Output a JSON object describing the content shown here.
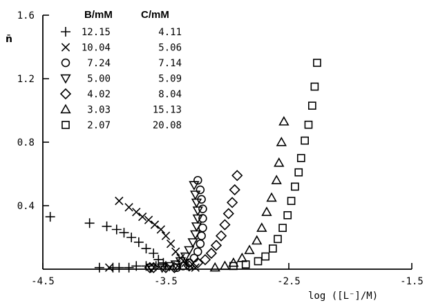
{
  "chart_data": {
    "type": "scatter",
    "ylabel": "n̄",
    "xlabel": "log ([L⁻]/M)",
    "xlim": [
      -4.5,
      -1.5
    ],
    "ylim": [
      0,
      1.6
    ],
    "xticks": [
      -4.5,
      -3.5,
      -2.5,
      -1.5
    ],
    "xtick_labels": [
      "-4.5",
      "-3.5",
      "-2.5",
      "-1.5"
    ],
    "yticks": [
      0.4,
      0.8,
      1.2,
      1.6
    ],
    "ytick_labels": [
      "0.4",
      "0.8",
      "1.2",
      "1.6"
    ],
    "legend": {
      "col_b": "B/mM",
      "col_c": "C/mM",
      "placement": "top-left"
    },
    "series": [
      {
        "marker": "plus",
        "b": "12.15",
        "c": "4.11",
        "points": [
          [
            -4.44,
            0.33
          ],
          [
            -4.12,
            0.29
          ],
          [
            -3.98,
            0.27
          ],
          [
            -3.9,
            0.25
          ],
          [
            -3.84,
            0.23
          ],
          [
            -3.78,
            0.2
          ],
          [
            -3.72,
            0.17
          ],
          [
            -3.66,
            0.13
          ],
          [
            -3.6,
            0.1
          ],
          [
            -3.56,
            0.06
          ],
          [
            -3.52,
            0.04
          ],
          [
            -3.5,
            0.02
          ],
          [
            -3.58,
            0.02
          ],
          [
            -3.66,
            0.02
          ],
          [
            -3.74,
            0.02
          ],
          [
            -3.8,
            0.01
          ],
          [
            -3.88,
            0.01
          ],
          [
            -3.93,
            0.01
          ],
          [
            -4.04,
            0.01
          ]
        ]
      },
      {
        "marker": "cross",
        "b": "10.04",
        "c": "5.06",
        "points": [
          [
            -3.96,
            0.01
          ],
          [
            -3.88,
            0.43
          ],
          [
            -3.8,
            0.39
          ],
          [
            -3.74,
            0.36
          ],
          [
            -3.69,
            0.33
          ],
          [
            -3.64,
            0.31
          ],
          [
            -3.59,
            0.28
          ],
          [
            -3.54,
            0.25
          ],
          [
            -3.5,
            0.21
          ],
          [
            -3.46,
            0.16
          ],
          [
            -3.42,
            0.11
          ],
          [
            -3.38,
            0.07
          ],
          [
            -3.34,
            0.04
          ],
          [
            -3.3,
            0.02
          ],
          [
            -3.26,
            0.01
          ]
        ]
      },
      {
        "marker": "circle",
        "b": "7.24",
        "c": "7.14",
        "points": [
          [
            -3.24,
            0.56
          ],
          [
            -3.22,
            0.5
          ],
          [
            -3.21,
            0.44
          ],
          [
            -3.2,
            0.38
          ],
          [
            -3.2,
            0.32
          ],
          [
            -3.2,
            0.26
          ],
          [
            -3.21,
            0.21
          ],
          [
            -3.22,
            0.16
          ],
          [
            -3.24,
            0.11
          ],
          [
            -3.27,
            0.07
          ],
          [
            -3.31,
            0.04
          ],
          [
            -3.36,
            0.02
          ],
          [
            -3.41,
            0.01
          ]
        ]
      },
      {
        "marker": "triangle-down",
        "b": "5.00",
        "c": "5.09",
        "points": [
          [
            -3.27,
            0.53
          ],
          [
            -3.26,
            0.47
          ],
          [
            -3.25,
            0.42
          ],
          [
            -3.24,
            0.37
          ],
          [
            -3.24,
            0.32
          ],
          [
            -3.25,
            0.27
          ],
          [
            -3.26,
            0.22
          ],
          [
            -3.28,
            0.17
          ],
          [
            -3.31,
            0.12
          ],
          [
            -3.34,
            0.08
          ],
          [
            -3.38,
            0.05
          ],
          [
            -3.42,
            0.03
          ],
          [
            -3.47,
            0.02
          ],
          [
            -3.53,
            0.01
          ],
          [
            -3.62,
            0.01
          ]
        ]
      },
      {
        "marker": "diamond",
        "b": "4.02",
        "c": "8.04",
        "points": [
          [
            -2.92,
            0.59
          ],
          [
            -2.94,
            0.5
          ],
          [
            -2.96,
            0.42
          ],
          [
            -2.99,
            0.35
          ],
          [
            -3.02,
            0.28
          ],
          [
            -3.05,
            0.21
          ],
          [
            -3.09,
            0.15
          ],
          [
            -3.13,
            0.1
          ],
          [
            -3.18,
            0.06
          ],
          [
            -3.24,
            0.04
          ],
          [
            -3.31,
            0.02
          ],
          [
            -3.43,
            0.01
          ],
          [
            -3.5,
            0.01
          ],
          [
            -3.6,
            0.01
          ],
          [
            -3.63,
            0.01
          ]
        ]
      },
      {
        "marker": "triangle-up",
        "b": "3.03",
        "c": "15.13",
        "points": [
          [
            -2.54,
            0.93
          ],
          [
            -2.56,
            0.8
          ],
          [
            -2.58,
            0.67
          ],
          [
            -2.6,
            0.56
          ],
          [
            -2.64,
            0.45
          ],
          [
            -2.68,
            0.36
          ],
          [
            -2.72,
            0.26
          ],
          [
            -2.76,
            0.18
          ],
          [
            -2.82,
            0.12
          ],
          [
            -2.88,
            0.07
          ],
          [
            -2.95,
            0.04
          ],
          [
            -3.02,
            0.02
          ],
          [
            -3.1,
            0.01
          ]
        ]
      },
      {
        "marker": "square",
        "b": "2.07",
        "c": "20.08",
        "points": [
          [
            -2.27,
            1.3
          ],
          [
            -2.29,
            1.15
          ],
          [
            -2.31,
            1.03
          ],
          [
            -2.34,
            0.91
          ],
          [
            -2.37,
            0.81
          ],
          [
            -2.4,
            0.7
          ],
          [
            -2.42,
            0.61
          ],
          [
            -2.45,
            0.52
          ],
          [
            -2.48,
            0.43
          ],
          [
            -2.51,
            0.34
          ],
          [
            -2.55,
            0.26
          ],
          [
            -2.59,
            0.19
          ],
          [
            -2.63,
            0.13
          ],
          [
            -2.69,
            0.08
          ],
          [
            -2.75,
            0.05
          ],
          [
            -2.85,
            0.03
          ],
          [
            -2.95,
            0.02
          ]
        ]
      }
    ]
  }
}
